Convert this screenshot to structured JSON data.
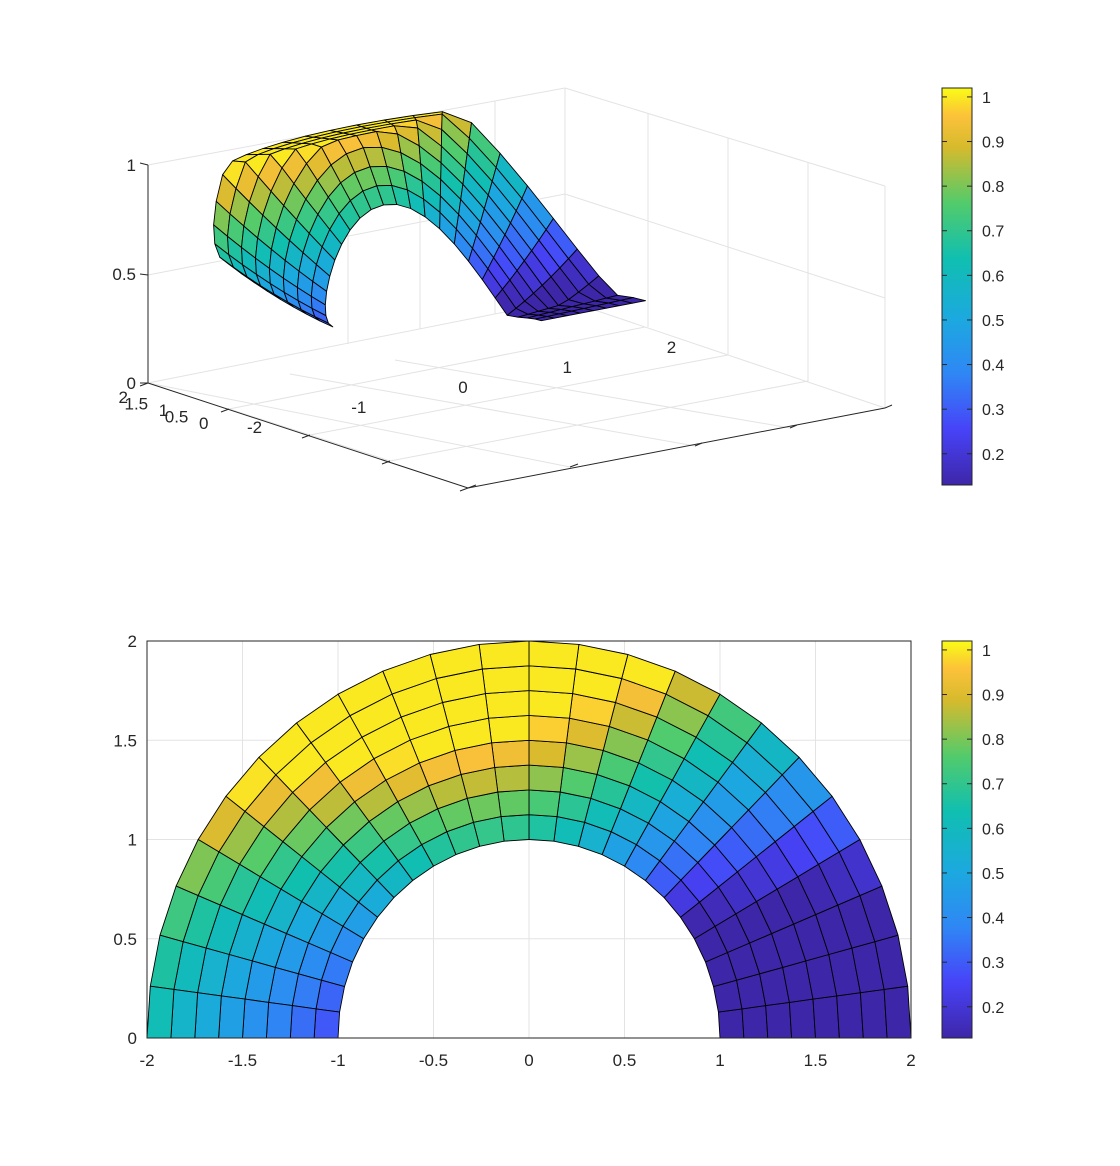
{
  "chart_data": [
    {
      "type": "surface3d",
      "title": "",
      "xlabel": "",
      "ylabel": "",
      "zlabel": "",
      "xlim": [
        -2,
        2
      ],
      "ylim": [
        0,
        2
      ],
      "zlim": [
        0,
        1
      ],
      "xticks": [
        -2,
        -1,
        0,
        1,
        2
      ],
      "yticks": [
        0,
        0.5,
        1,
        1.5,
        2
      ],
      "zticks": [
        0,
        0.5,
        1
      ],
      "xtick_labels": [
        "-2",
        "-1",
        "0",
        "1",
        "2"
      ],
      "ytick_labels": [
        "0",
        "0.5",
        "1",
        "1.5",
        "2"
      ],
      "ztick_labels": [
        "0",
        "0.5",
        "1"
      ],
      "domain": "half annulus, radius 1 to 2, angle 0 to pi",
      "grid": true,
      "colormap": "parula",
      "clim": [
        0.13,
        1.02
      ],
      "colorbar": {
        "ticks": [
          0.2,
          0.3,
          0.4,
          0.5,
          0.6,
          0.7,
          0.8,
          0.9,
          1
        ],
        "labels": [
          "0.2",
          "0.3",
          "0.4",
          "0.5",
          "0.6",
          "0.7",
          "0.8",
          "0.9",
          "1"
        ],
        "placement": "right"
      }
    },
    {
      "type": "heatmap",
      "view": "top (2D surface)",
      "title": "",
      "xlabel": "",
      "ylabel": "",
      "xlim": [
        -2,
        2
      ],
      "ylim": [
        0,
        2
      ],
      "xticks": [
        -2,
        -1.5,
        -1,
        -0.5,
        0,
        0.5,
        1,
        1.5,
        2
      ],
      "yticks": [
        0,
        0.5,
        1,
        1.5,
        2
      ],
      "xtick_labels": [
        "-2",
        "-1.5",
        "-1",
        "-0.5",
        "0",
        "0.5",
        "1",
        "1.5",
        "2"
      ],
      "ytick_labels": [
        "0",
        "0.5",
        "1",
        "1.5",
        "2"
      ],
      "domain": "half annulus, radius 1 to 2, angle 0 to pi",
      "grid": true,
      "colormap": "parula",
      "clim": [
        0.13,
        1.02
      ],
      "colorbar": {
        "ticks": [
          0.2,
          0.3,
          0.4,
          0.5,
          0.6,
          0.7,
          0.8,
          0.9,
          1
        ],
        "labels": [
          "0.2",
          "0.3",
          "0.4",
          "0.5",
          "0.6",
          "0.7",
          "0.8",
          "0.9",
          "1"
        ],
        "placement": "right"
      }
    }
  ]
}
